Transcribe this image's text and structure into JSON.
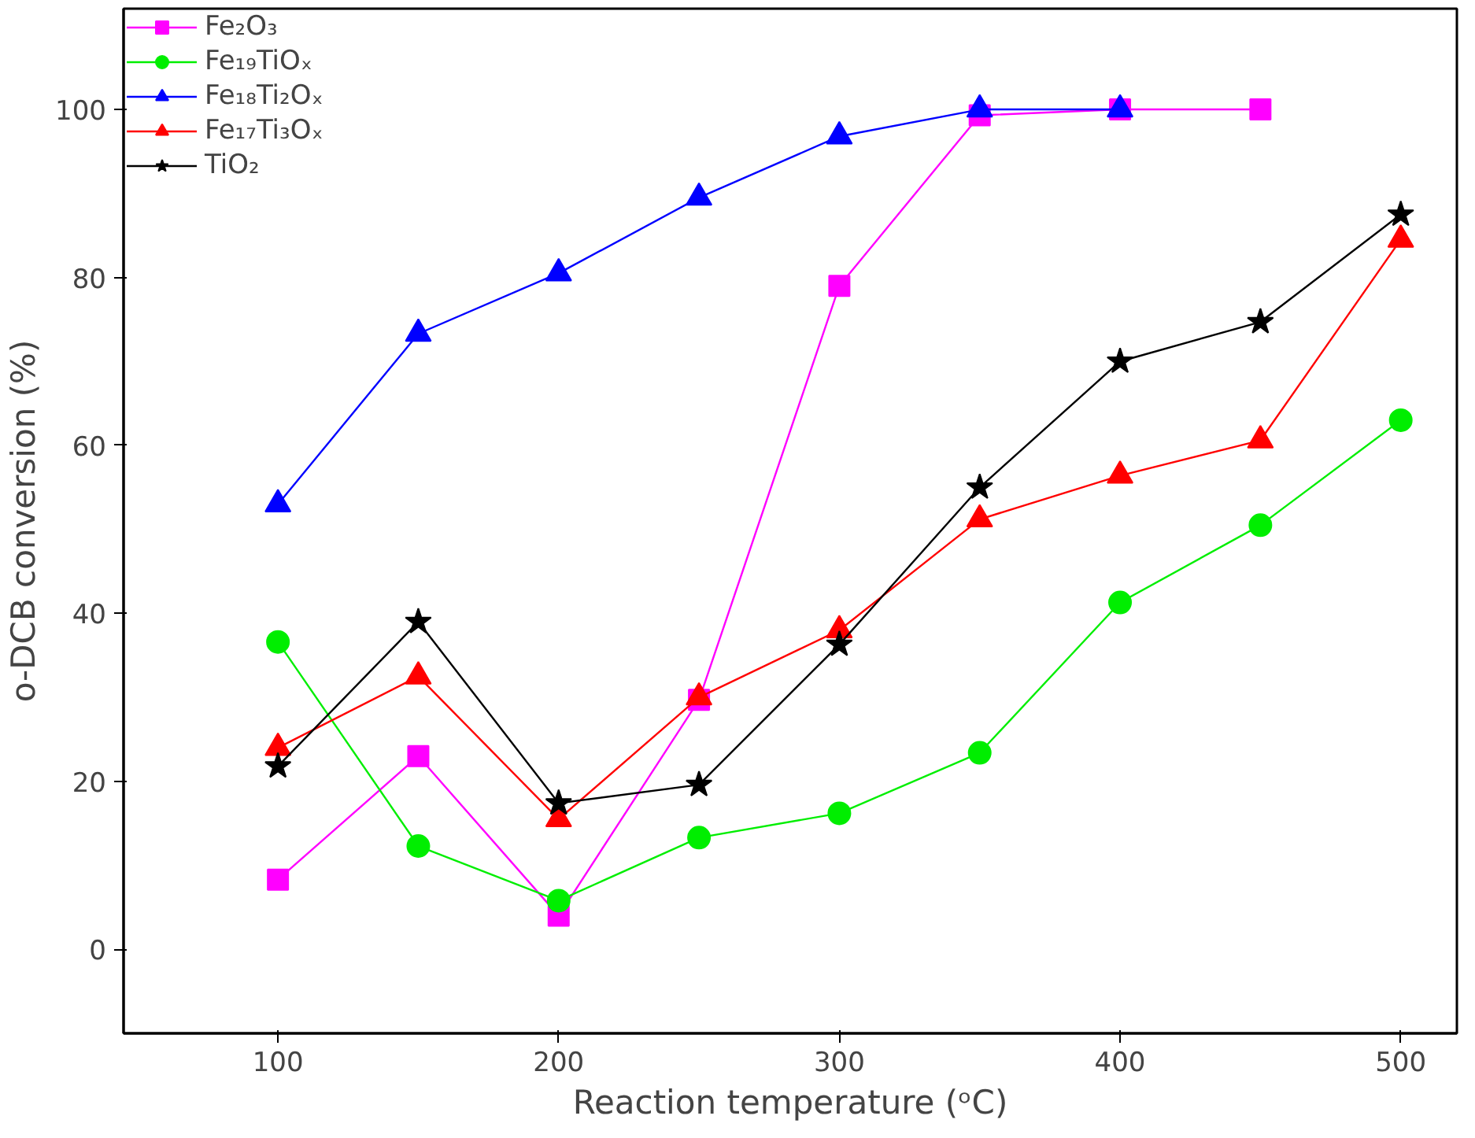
{
  "chart_data": {
    "type": "line",
    "xlabel": "Reaction temperature (ᵒC)",
    "ylabel": "o-DCB conversion (%)",
    "xlim": [
      45,
      520
    ],
    "ylim": [
      -10,
      112
    ],
    "xticks": [
      100,
      200,
      300,
      400,
      500
    ],
    "yticks": [
      0,
      20,
      40,
      60,
      80,
      100
    ],
    "grid": false,
    "legend": "top left",
    "line_style": "solid",
    "series": [
      {
        "name": "Fe₂O₃",
        "color": "#ff00ff",
        "marker": "square",
        "x": [
          100,
          150,
          200,
          250,
          300,
          350,
          400,
          450
        ],
        "values": [
          8.3,
          23,
          4,
          29.7,
          79,
          99.3,
          100,
          100
        ]
      },
      {
        "name": "Fe₁₉TiOₓ",
        "color": "#00ee00",
        "marker": "circle",
        "x": [
          100,
          150,
          200,
          250,
          300,
          350,
          400,
          450,
          500
        ],
        "values": [
          36.6,
          12.3,
          5.8,
          13.3,
          16.2,
          23.4,
          41.3,
          50.5,
          63
        ]
      },
      {
        "name": "Fe₁₈Ti₂Oₓ",
        "color": "#0000ff",
        "marker": "triangle",
        "x": [
          100,
          150,
          200,
          250,
          300,
          350,
          400
        ],
        "values": [
          53,
          73.3,
          80.5,
          89.5,
          96.8,
          100,
          100
        ]
      },
      {
        "name": "Fe₁₇Ti₃Oₓ",
        "color": "#ff0000",
        "marker": "triangle",
        "x": [
          100,
          150,
          200,
          250,
          300,
          350,
          400,
          450,
          500
        ],
        "values": [
          24,
          32.5,
          15.5,
          30,
          38,
          51.2,
          56.4,
          60.6,
          84.5
        ]
      },
      {
        "name": "TiO₂",
        "color": "#000000",
        "marker": "star",
        "x": [
          100,
          150,
          200,
          250,
          300,
          350,
          400,
          450,
          500
        ],
        "values": [
          21.8,
          39,
          17.4,
          19.6,
          36.3,
          55,
          70,
          74.7,
          87.5
        ]
      }
    ]
  }
}
